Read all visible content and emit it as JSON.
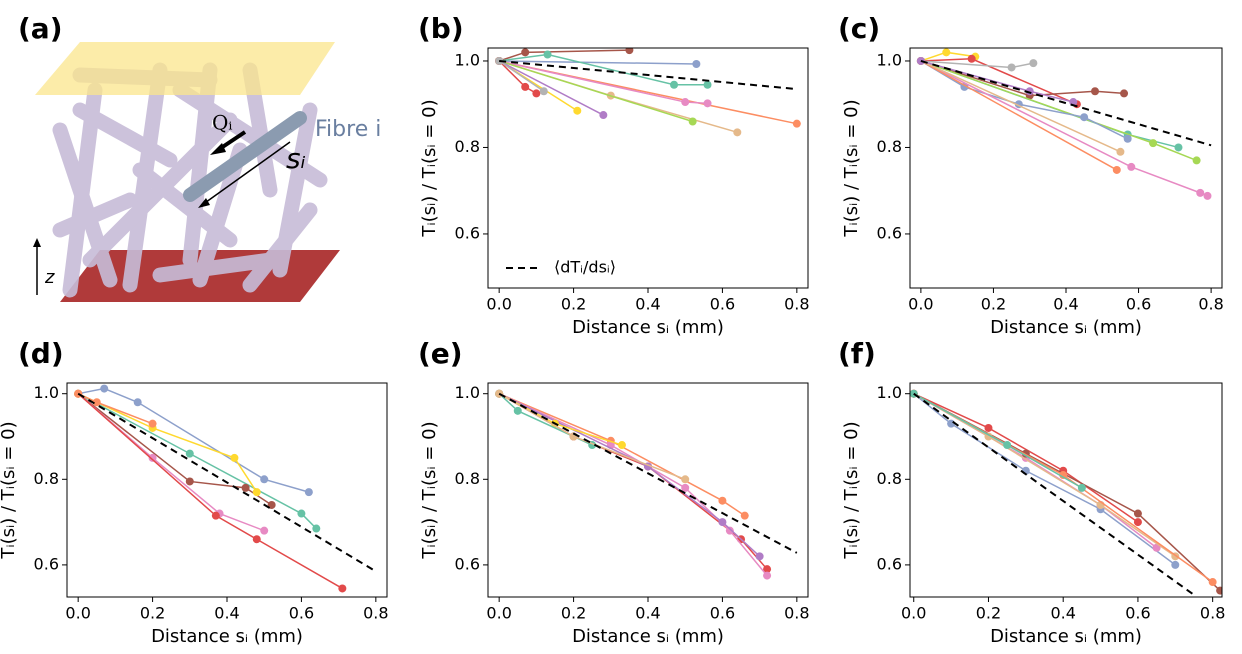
{
  "illustration": {
    "label": "(a)",
    "fibre_label": "Fibre i",
    "flux_label": "Qᵢ",
    "distance_label": "sᵢ",
    "axis_label": "z"
  },
  "chart_data": [
    {
      "type": "line",
      "panel_label": "(b)",
      "x_label": "Distance sᵢ (mm)",
      "y_label": "Tᵢ(sᵢ) / Tᵢ(sᵢ = 0)",
      "xlim": [
        -0.03,
        0.83
      ],
      "ylim": [
        0.475,
        1.03
      ],
      "xticks": [
        {
          "value": 0,
          "label": "0.0"
        },
        0.2,
        0.4,
        0.6,
        0.8
      ],
      "yticks": [
        0.6,
        0.8,
        {
          "value": 1,
          "label": "1.0"
        }
      ],
      "legend": "lower left",
      "series": [
        {
          "color": "#8da0cb",
          "x": [
            0,
            0.53
          ],
          "values": [
            1,
            0.993
          ]
        },
        {
          "color": "#a6564a",
          "x": [
            0,
            0.07,
            0.35
          ],
          "values": [
            1,
            1.02,
            1.025
          ]
        },
        {
          "color": "#66c2a5",
          "x": [
            0,
            0.13,
            0.47,
            0.56
          ],
          "values": [
            1,
            1.015,
            0.945,
            0.945
          ]
        },
        {
          "color": "#fc8d62",
          "x": [
            0,
            0.8
          ],
          "values": [
            1,
            0.855
          ]
        },
        {
          "color": "#e5b98a",
          "x": [
            0,
            0.3,
            0.64
          ],
          "values": [
            1,
            0.92,
            0.835
          ]
        },
        {
          "color": "#e78ac3",
          "x": [
            0,
            0.5,
            0.56
          ],
          "values": [
            1,
            0.905,
            0.902
          ]
        },
        {
          "color": "#a6d854",
          "x": [
            0,
            0.52
          ],
          "values": [
            1,
            0.86
          ]
        },
        {
          "color": "#ffd92f",
          "x": [
            0,
            0.21
          ],
          "values": [
            1,
            0.885
          ]
        },
        {
          "color": "#b07cc6",
          "x": [
            0,
            0.28
          ],
          "values": [
            1,
            0.875
          ]
        },
        {
          "color": "#e24a4a",
          "x": [
            0,
            0.07,
            0.1
          ],
          "values": [
            1,
            0.94,
            0.925
          ]
        },
        {
          "color": "#b3b3b3",
          "x": [
            0,
            0.12
          ],
          "values": [
            1,
            0.93
          ]
        },
        {
          "name": "⟨dTᵢ/dsᵢ⟩",
          "color": "#000000",
          "linestyle": "dashed",
          "x": [
            0,
            0.8
          ],
          "values": [
            1,
            0.935
          ]
        }
      ]
    },
    {
      "type": "line",
      "panel_label": "(c)",
      "x_label": "Distance sᵢ (mm)",
      "y_label": "Tᵢ(sᵢ) / Tᵢ(sᵢ = 0)",
      "xlim": [
        -0.03,
        0.83
      ],
      "ylim": [
        0.475,
        1.03
      ],
      "xticks": [
        {
          "value": 0,
          "label": "0.0"
        },
        0.2,
        0.4,
        0.6,
        0.8
      ],
      "yticks": [
        0.6,
        0.8,
        {
          "value": 1,
          "label": "1.0"
        }
      ],
      "series": [
        {
          "color": "#ffd92f",
          "x": [
            0,
            0.07,
            0.15
          ],
          "values": [
            1,
            1.02,
            1.01
          ]
        },
        {
          "color": "#e24a4a",
          "x": [
            0,
            0.14,
            0.43
          ],
          "values": [
            1,
            1.005,
            0.9
          ]
        },
        {
          "color": "#a6564a",
          "x": [
            0,
            0.3,
            0.48,
            0.56
          ],
          "values": [
            1,
            0.92,
            0.93,
            0.925
          ]
        },
        {
          "color": "#b3b3b3",
          "x": [
            0,
            0.25,
            0.31
          ],
          "values": [
            1,
            0.985,
            0.995
          ]
        },
        {
          "color": "#66c2a5",
          "x": [
            0,
            0.57,
            0.71
          ],
          "values": [
            1,
            0.83,
            0.8
          ]
        },
        {
          "color": "#a6d854",
          "x": [
            0,
            0.64,
            0.76
          ],
          "values": [
            1,
            0.81,
            0.77
          ]
        },
        {
          "color": "#8da0cb",
          "x": [
            0,
            0.12,
            0.27,
            0.45,
            0.57
          ],
          "values": [
            1,
            0.94,
            0.9,
            0.87,
            0.82
          ]
        },
        {
          "color": "#e78ac3",
          "x": [
            0,
            0.58,
            0.77,
            0.79
          ],
          "values": [
            1,
            0.755,
            0.695,
            0.688
          ]
        },
        {
          "color": "#fc8d62",
          "x": [
            0,
            0.54
          ],
          "values": [
            1,
            0.748
          ]
        },
        {
          "color": "#e5b98a",
          "x": [
            0,
            0.55
          ],
          "values": [
            1,
            0.79
          ]
        },
        {
          "color": "#b07cc6",
          "x": [
            0,
            0.3,
            0.42
          ],
          "values": [
            1,
            0.93,
            0.905
          ]
        },
        {
          "color": "#000000",
          "linestyle": "dashed",
          "x": [
            0,
            0.8
          ],
          "values": [
            1,
            0.805
          ]
        }
      ]
    },
    {
      "type": "line",
      "panel_label": "(d)",
      "x_label": "Distance sᵢ (mm)",
      "y_label": "Tᵢ(sᵢ) / Tᵢ(sᵢ = 0)",
      "xlim": [
        -0.03,
        0.83
      ],
      "ylim": [
        0.525,
        1.025
      ],
      "xticks": [
        {
          "value": 0,
          "label": "0.0"
        },
        0.2,
        0.4,
        0.6,
        0.8
      ],
      "yticks": [
        0.6,
        0.8,
        {
          "value": 1,
          "label": "1.0"
        }
      ],
      "series": [
        {
          "color": "#8da0cb",
          "x": [
            0,
            0.07,
            0.16,
            0.5,
            0.62
          ],
          "values": [
            1,
            1.012,
            0.98,
            0.8,
            0.77
          ]
        },
        {
          "color": "#66c2a5",
          "x": [
            0,
            0.3,
            0.6,
            0.64
          ],
          "values": [
            1,
            0.86,
            0.72,
            0.685
          ]
        },
        {
          "color": "#a6564a",
          "x": [
            0,
            0.3,
            0.45,
            0.52
          ],
          "values": [
            1,
            0.795,
            0.78,
            0.74
          ]
        },
        {
          "color": "#e78ac3",
          "x": [
            0,
            0.2,
            0.38,
            0.5
          ],
          "values": [
            1,
            0.85,
            0.72,
            0.68
          ]
        },
        {
          "color": "#e24a4a",
          "x": [
            0,
            0.37,
            0.48,
            0.71
          ],
          "values": [
            1,
            0.715,
            0.66,
            0.545
          ]
        },
        {
          "color": "#ffd92f",
          "x": [
            0,
            0.2,
            0.42,
            0.48
          ],
          "values": [
            1,
            0.92,
            0.85,
            0.77
          ]
        },
        {
          "color": "#fc8d62",
          "x": [
            0,
            0.05,
            0.2
          ],
          "values": [
            1,
            0.98,
            0.93
          ]
        },
        {
          "color": "#000000",
          "linestyle": "dashed",
          "x": [
            0,
            0.8
          ],
          "values": [
            1,
            0.585
          ]
        }
      ]
    },
    {
      "type": "line",
      "panel_label": "(e)",
      "x_label": "Distance sᵢ (mm)",
      "y_label": "Tᵢ(sᵢ) / Tᵢ(sᵢ = 0)",
      "xlim": [
        -0.03,
        0.83
      ],
      "ylim": [
        0.525,
        1.025
      ],
      "xticks": [
        {
          "value": 0,
          "label": "0.0"
        },
        0.2,
        0.4,
        0.6,
        0.8
      ],
      "yticks": [
        0.6,
        0.8,
        {
          "value": 1,
          "label": "1.0"
        }
      ],
      "series": [
        {
          "color": "#e24a4a",
          "x": [
            0,
            0.2,
            0.4,
            0.65,
            0.72
          ],
          "values": [
            1,
            0.9,
            0.83,
            0.66,
            0.59
          ]
        },
        {
          "color": "#fc8d62",
          "x": [
            0,
            0.3,
            0.6,
            0.66
          ],
          "values": [
            1,
            0.89,
            0.75,
            0.715
          ]
        },
        {
          "color": "#e78ac3",
          "x": [
            0,
            0.3,
            0.5,
            0.62,
            0.72
          ],
          "values": [
            1,
            0.88,
            0.78,
            0.68,
            0.575
          ]
        },
        {
          "color": "#b07cc6",
          "x": [
            0,
            0.4,
            0.6,
            0.7
          ],
          "values": [
            1,
            0.83,
            0.7,
            0.62
          ]
        },
        {
          "color": "#ffd92f",
          "x": [
            0,
            0.15,
            0.33
          ],
          "values": [
            1,
            0.93,
            0.88
          ]
        },
        {
          "color": "#66c2a5",
          "x": [
            0,
            0.05,
            0.25
          ],
          "values": [
            1,
            0.96,
            0.88
          ]
        },
        {
          "color": "#e5b98a",
          "x": [
            0,
            0.2,
            0.5
          ],
          "values": [
            1,
            0.9,
            0.8
          ]
        },
        {
          "color": "#000000",
          "linestyle": "dashed",
          "x": [
            0,
            0.8
          ],
          "values": [
            1,
            0.628
          ]
        }
      ]
    },
    {
      "type": "line",
      "panel_label": "(f)",
      "x_label": "Distance sᵢ (mm)",
      "y_label": "Tᵢ(sᵢ) / Tᵢ(sᵢ = 0)",
      "xlim": [
        -0.01,
        0.825
      ],
      "ylim": [
        0.525,
        1.025
      ],
      "xticks": [
        {
          "value": 0,
          "label": "0.0"
        },
        0.2,
        0.4,
        0.6,
        0.8
      ],
      "yticks": [
        0.6,
        0.8,
        {
          "value": 1,
          "label": "1.0"
        }
      ],
      "series": [
        {
          "color": "#8da0cb",
          "x": [
            0,
            0.1,
            0.3,
            0.5,
            0.7
          ],
          "values": [
            1,
            0.93,
            0.82,
            0.73,
            0.6
          ]
        },
        {
          "color": "#e24a4a",
          "x": [
            0,
            0.2,
            0.4,
            0.6
          ],
          "values": [
            1,
            0.92,
            0.82,
            0.7
          ]
        },
        {
          "color": "#e78ac3",
          "x": [
            0,
            0.3,
            0.5,
            0.65
          ],
          "values": [
            1,
            0.85,
            0.74,
            0.64
          ]
        },
        {
          "color": "#a6564a",
          "x": [
            0,
            0.3,
            0.6,
            0.82
          ],
          "values": [
            1,
            0.86,
            0.72,
            0.54
          ]
        },
        {
          "color": "#e5b98a",
          "x": [
            0,
            0.2,
            0.5,
            0.7
          ],
          "values": [
            1,
            0.9,
            0.74,
            0.62
          ]
        },
        {
          "color": "#fc8d62",
          "x": [
            0,
            0.4,
            0.8
          ],
          "values": [
            1,
            0.81,
            0.56
          ]
        },
        {
          "color": "#66c2a5",
          "x": [
            0,
            0.25,
            0.45
          ],
          "values": [
            1,
            0.88,
            0.78
          ]
        },
        {
          "color": "#000000",
          "linestyle": "dashed",
          "x": [
            0,
            0.75
          ],
          "values": [
            1,
            0.53
          ]
        }
      ]
    }
  ]
}
